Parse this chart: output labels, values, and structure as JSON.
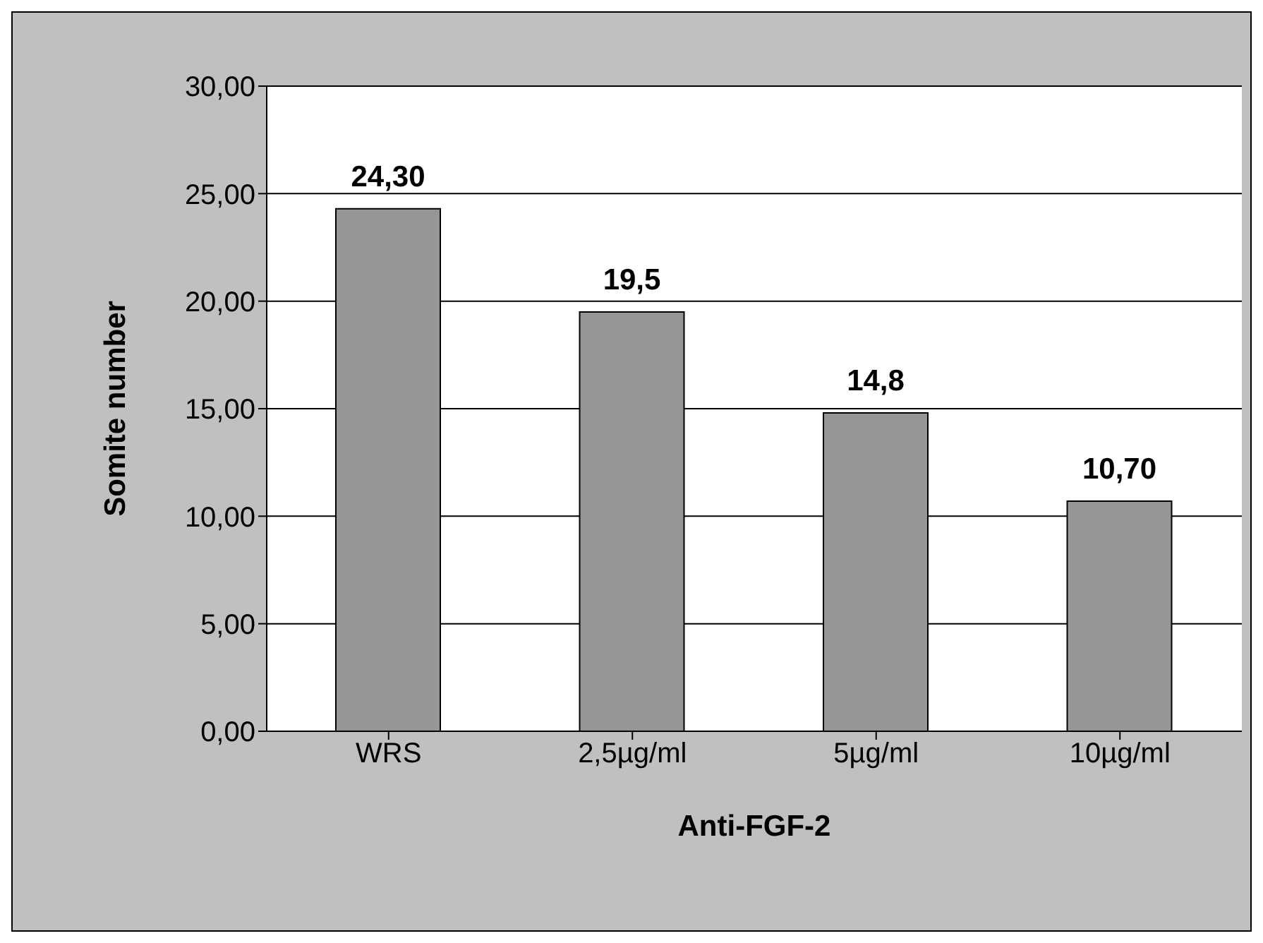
{
  "chart_data": {
    "type": "bar",
    "xlabel": "Anti-FGF-2",
    "ylabel": "Somite number",
    "categories": [
      "WRS",
      "2,5µg/ml",
      "5µg/ml",
      "10µg/ml"
    ],
    "values": [
      24.3,
      19.5,
      14.8,
      10.7
    ],
    "value_labels": [
      "24,30",
      "19,5",
      "14,8",
      "10,70"
    ],
    "color": "#969696",
    "ylim": [
      0,
      30
    ],
    "yticks": [
      {
        "value": 0,
        "label": "0,00"
      },
      {
        "value": 5,
        "label": "5,00"
      },
      {
        "value": 10,
        "label": "10,00"
      },
      {
        "value": 15,
        "label": "15,00"
      },
      {
        "value": 20,
        "label": "20,00"
      },
      {
        "value": 25,
        "label": "25,00"
      },
      {
        "value": 30,
        "label": "30,00"
      }
    ],
    "grid": "y",
    "legend": false
  }
}
